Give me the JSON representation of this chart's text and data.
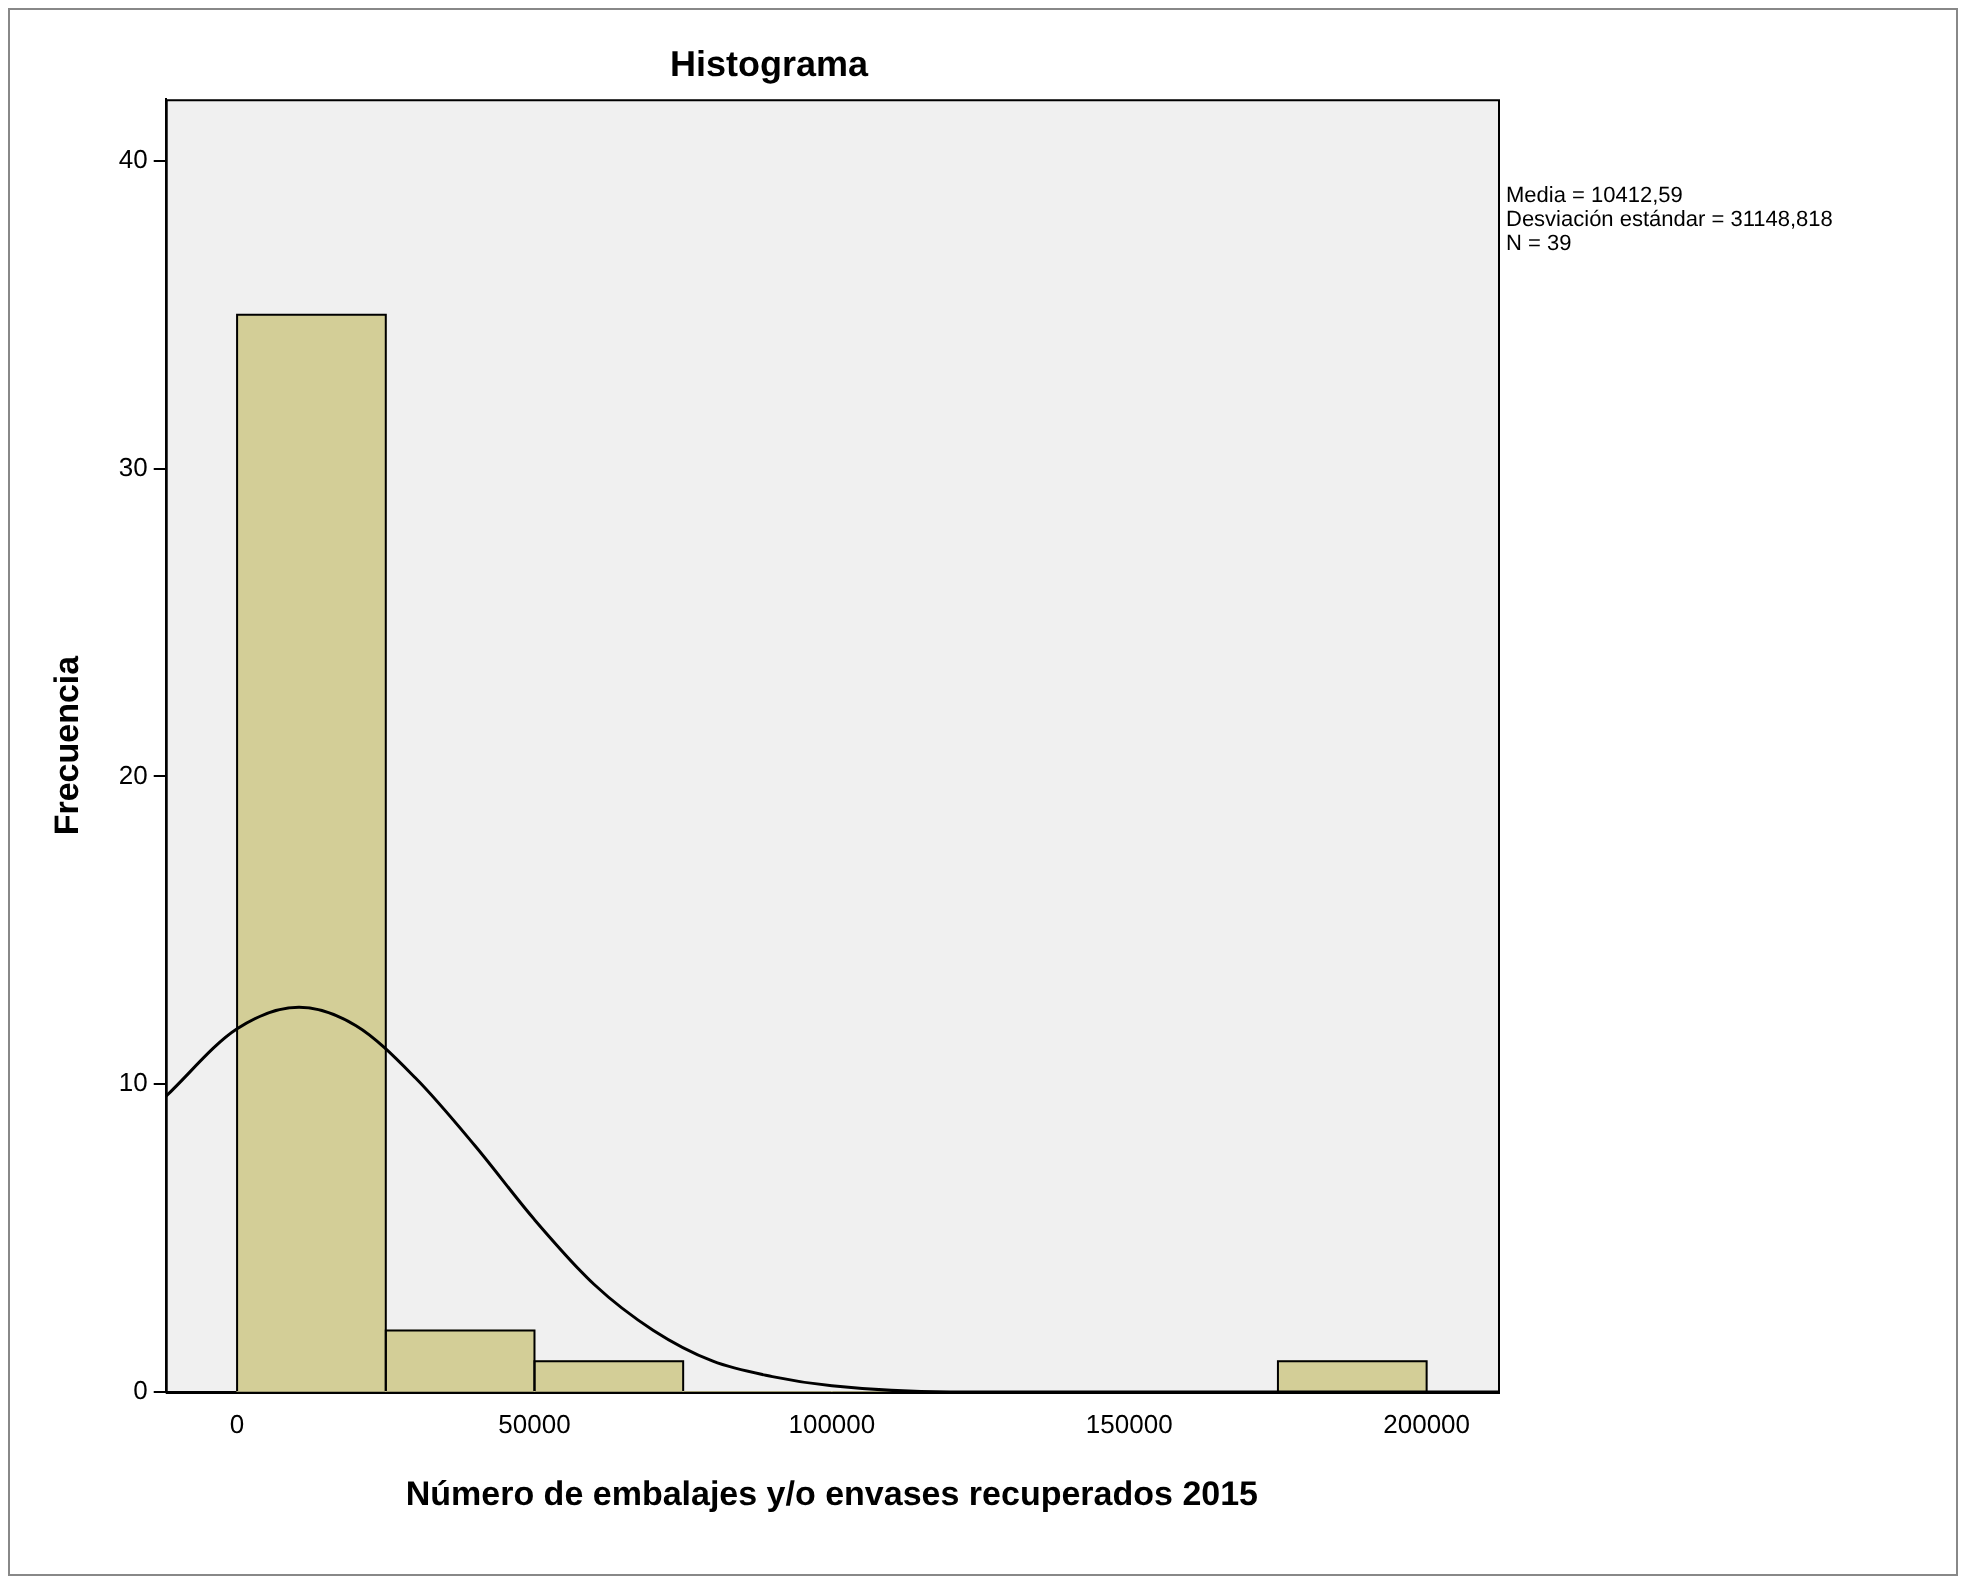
{
  "chart_data": {
    "type": "histogram",
    "title": "Histograma",
    "xlabel": "Número de embalajes y/o envases recuperados 2015",
    "ylabel": "Frecuencia",
    "bins": [
      0,
      25000,
      50000,
      75000,
      100000,
      125000,
      150000,
      175000,
      200000
    ],
    "series": [
      {
        "type": "histogram",
        "color": "#d3ce97",
        "values": [
          35,
          2,
          1,
          0,
          0,
          0,
          0,
          1
        ]
      },
      {
        "type": "line",
        "color": "#000000",
        "x": [
          -12000,
          0,
          10412,
          20000,
          30000,
          40000,
          50000,
          60000,
          70000,
          80000,
          90000,
          100000,
          120000,
          140000,
          212000
        ],
        "values": [
          9.6,
          11.8,
          12.5,
          11.9,
          10.2,
          8.0,
          5.6,
          3.5,
          2.0,
          1.0,
          0.5,
          0.2,
          0,
          0,
          0
        ]
      }
    ],
    "xlim": [
      -12000,
      212000
    ],
    "ylim": [
      0,
      42
    ],
    "xticks": [
      0,
      50000,
      100000,
      150000,
      200000
    ],
    "yticks": [
      0,
      10,
      20,
      30,
      40
    ],
    "grid": false,
    "legend": false,
    "marker": "none",
    "annotations": [
      "Media = 10412,59",
      "Desviación estándar = 31148,818",
      "N = 39"
    ]
  }
}
